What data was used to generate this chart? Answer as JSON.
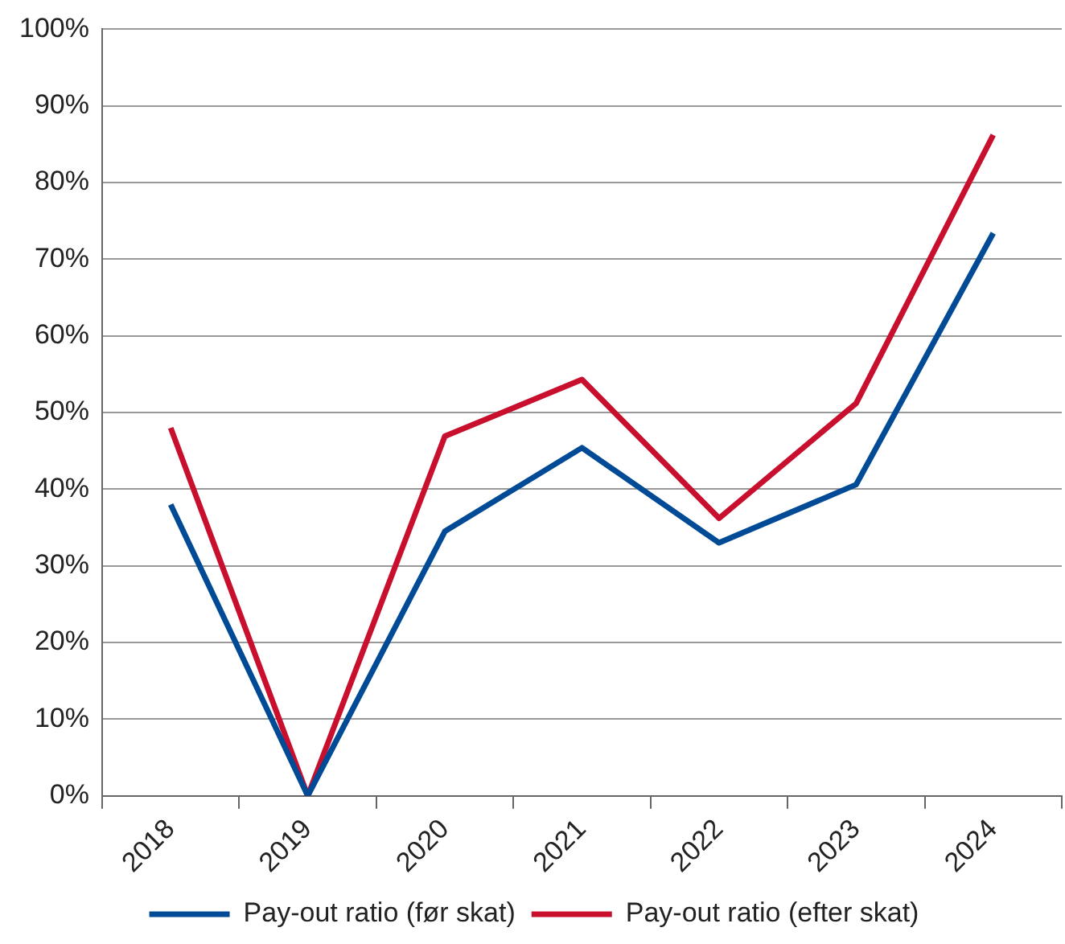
{
  "chart_data": {
    "type": "line",
    "categories": [
      "2018",
      "2019",
      "2020",
      "2021",
      "2022",
      "2023",
      "2024"
    ],
    "series": [
      {
        "name": "Pay-out ratio (før skat)",
        "color": "#004a96",
        "values": [
          38,
          0,
          34.5,
          45.4,
          33,
          40.6,
          73.4
        ]
      },
      {
        "name": "Pay-out ratio (efter skat)",
        "color": "#c8102e",
        "values": [
          48,
          0,
          46.9,
          54.3,
          36.2,
          51.2,
          86.2
        ]
      }
    ],
    "ylim": [
      0,
      100
    ],
    "yticks": [
      {
        "value": 0,
        "label": "0%"
      },
      {
        "value": 10,
        "label": "10%"
      },
      {
        "value": 20,
        "label": "20%"
      },
      {
        "value": 30,
        "label": "30%"
      },
      {
        "value": 40,
        "label": "40%"
      },
      {
        "value": 50,
        "label": "50%"
      },
      {
        "value": 60,
        "label": "60%"
      },
      {
        "value": 70,
        "label": "70%"
      },
      {
        "value": 80,
        "label": "80%"
      },
      {
        "value": 90,
        "label": "90%"
      },
      {
        "value": 100,
        "label": "100%"
      }
    ],
    "grid": "y",
    "legend": "bottom",
    "marker": "none",
    "line_style": "solid"
  }
}
